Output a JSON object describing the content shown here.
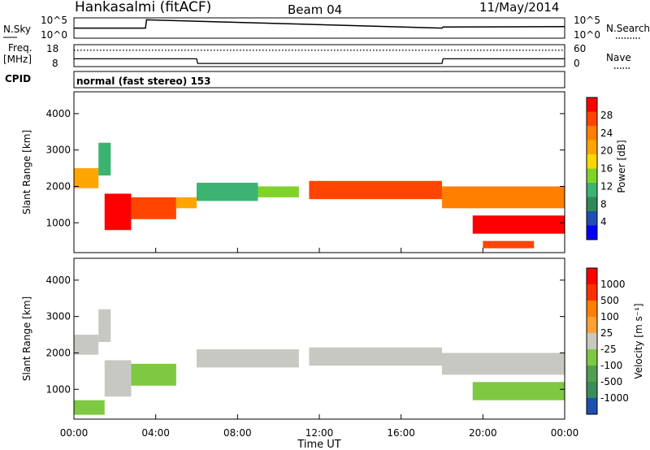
{
  "header": {
    "station": "Hankasalmi (fitACF)",
    "beam": "Beam 04",
    "date": "11/May/2014"
  },
  "noise_panel": {
    "left_label": "N.Sky",
    "left_ticks": [
      "10^5",
      "10^0"
    ],
    "right_label": "N.Search",
    "right_ticks": [
      "10^5",
      "10^0"
    ]
  },
  "freq_panel": {
    "left_label_1": "Freq.",
    "left_label_2": "[MHz]",
    "left_ticks": [
      "18",
      "8"
    ],
    "right_label": "Nave",
    "right_ticks": [
      "60",
      "0"
    ]
  },
  "cpid_panel": {
    "label": "CPID",
    "text": "normal (fast stereo) 153"
  },
  "power_panel": {
    "ylabel": "Slant Range [km]",
    "yticks": [
      "4000",
      "3000",
      "2000",
      "1000"
    ],
    "colorbar_label": "Power [dB]",
    "colorbar_ticks": [
      "28",
      "24",
      "20",
      "16",
      "12",
      "8",
      "4"
    ],
    "colors": [
      "#0000ff",
      "#1f4fb4",
      "#2e8b57",
      "#3cb371",
      "#7fd32a",
      "#ffd700",
      "#ffa500",
      "#ff7f00",
      "#ff4500",
      "#ff0000"
    ]
  },
  "velocity_panel": {
    "ylabel": "Slant Range [km]",
    "yticks": [
      "4000",
      "3000",
      "2000",
      "1000"
    ],
    "colorbar_label": "Velocity [m s⁻¹]",
    "colorbar_ticks": [
      "1000",
      "500",
      "100",
      "25",
      "-25",
      "-100",
      "-500",
      "-1000"
    ],
    "colors": [
      "#1e50b4",
      "#3a8c5a",
      "#50a050",
      "#7fc842",
      "#c8c8c3",
      "#ffa032",
      "#ff8000",
      "#ff3000",
      "#ff0000"
    ]
  },
  "xaxis": {
    "label": "Time UT",
    "ticks": [
      "00:00",
      "04:00",
      "08:00",
      "12:00",
      "16:00",
      "20:00",
      "00:00"
    ]
  },
  "chart_data": [
    {
      "type": "line",
      "name": "noise",
      "x_hours": [
        0,
        3.5,
        3.55,
        18,
        18.05,
        24
      ],
      "y_log": [
        2.6,
        2.6,
        4.9,
        2.6,
        2.9,
        3.0
      ],
      "ylim": [
        0,
        5
      ]
    },
    {
      "type": "line",
      "name": "frequency",
      "x_hours": [
        0,
        6,
        6.05,
        18,
        18.05,
        24
      ],
      "freq_mhz": [
        11,
        11,
        8,
        8,
        11,
        11
      ],
      "nave": [
        45,
        45,
        45,
        45,
        45,
        45
      ]
    },
    {
      "type": "heatmap",
      "title": "Power [dB]",
      "xlabel": "Time UT",
      "ylabel": "Slant Range [km]",
      "xlim_hours": [
        0,
        24
      ],
      "ylim_km": [
        180,
        4600
      ],
      "zlim": [
        0,
        30
      ],
      "bands": [
        {
          "t0": 0.0,
          "t1": 1.2,
          "r0": 1950,
          "r1": 2500,
          "value": 18
        },
        {
          "t0": 1.2,
          "t1": 1.8,
          "r0": 2300,
          "r1": 3200,
          "value": 10
        },
        {
          "t0": 1.5,
          "t1": 2.8,
          "r0": 800,
          "r1": 1800,
          "value": 28
        },
        {
          "t0": 2.8,
          "t1": 5.0,
          "r0": 1100,
          "r1": 1700,
          "value": 26
        },
        {
          "t0": 5.0,
          "t1": 6.0,
          "r0": 1400,
          "r1": 1700,
          "value": 18
        },
        {
          "t0": 6.0,
          "t1": 9.0,
          "r0": 1600,
          "r1": 2100,
          "value": 10
        },
        {
          "t0": 9.0,
          "t1": 11.0,
          "r0": 1700,
          "r1": 2000,
          "value": 12
        },
        {
          "t0": 11.5,
          "t1": 18.0,
          "r0": 1650,
          "r1": 2150,
          "value": 24
        },
        {
          "t0": 18.0,
          "t1": 24.0,
          "r0": 1400,
          "r1": 2000,
          "value": 22
        },
        {
          "t0": 19.5,
          "t1": 24.0,
          "r0": 700,
          "r1": 1200,
          "value": 28
        },
        {
          "t0": 20.0,
          "t1": 22.5,
          "r0": 300,
          "r1": 500,
          "value": 26
        }
      ]
    },
    {
      "type": "heatmap",
      "title": "Velocity [m s⁻¹]",
      "xlabel": "Time UT",
      "ylabel": "Slant Range [km]",
      "xlim_hours": [
        0,
        24
      ],
      "ylim_km": [
        180,
        4600
      ],
      "zlim": [
        -1000,
        1000
      ],
      "bands": [
        {
          "t0": 0.0,
          "t1": 1.2,
          "r0": 1950,
          "r1": 2500,
          "value": 0
        },
        {
          "t0": 1.2,
          "t1": 1.8,
          "r0": 2300,
          "r1": 3200,
          "value": 0
        },
        {
          "t0": 1.5,
          "t1": 2.8,
          "r0": 800,
          "r1": 1800,
          "value": 80
        },
        {
          "t0": 2.8,
          "t1": 5.0,
          "r0": 1100,
          "r1": 1700,
          "value": 150
        },
        {
          "t0": 6.0,
          "t1": 11.0,
          "r0": 1600,
          "r1": 2100,
          "value": 0
        },
        {
          "t0": 11.5,
          "t1": 18.0,
          "r0": 1650,
          "r1": 2150,
          "value": 0
        },
        {
          "t0": 18.0,
          "t1": 24.0,
          "r0": 1400,
          "r1": 2000,
          "value": 0
        },
        {
          "t0": 19.5,
          "t1": 24.0,
          "r0": 700,
          "r1": 1200,
          "value": 200
        },
        {
          "t0": 0.0,
          "t1": 1.5,
          "r0": 300,
          "r1": 700,
          "value": 150
        }
      ]
    }
  ]
}
